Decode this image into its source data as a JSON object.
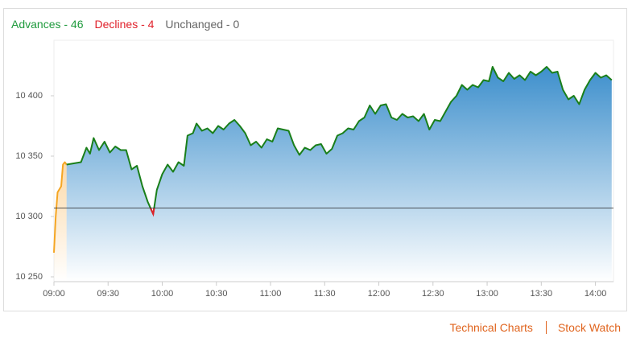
{
  "header": {
    "items": [
      {
        "text": "Advances - 46",
        "color": "#1e9a3c"
      },
      {
        "text": "Declines - 4",
        "color": "#e0202a"
      },
      {
        "text": "Unchanged - 0",
        "color": "#666666"
      }
    ]
  },
  "chart_data": {
    "type": "line",
    "xlim": [
      "09:00",
      "14:10"
    ],
    "xticks": [
      "09:00",
      "09:30",
      "10:00",
      "10:30",
      "11:00",
      "11:30",
      "12:00",
      "12:30",
      "13:00",
      "13:30",
      "14:00"
    ],
    "ylim": [
      10246,
      10446
    ],
    "yticks": [
      {
        "value": 10250,
        "label": "10 250"
      },
      {
        "value": 10300,
        "label": "10 300"
      },
      {
        "value": 10350,
        "label": "10 350"
      },
      {
        "value": 10400,
        "label": "10 400"
      }
    ],
    "reference": 10307,
    "below_color": "#e0202a",
    "series": [
      {
        "color": "#f5a623",
        "fill": "#fbd9a8",
        "x": [
          "09:00",
          "09:01",
          "09:02",
          "09:04",
          "09:05",
          "09:06",
          "09:07"
        ],
        "values": [
          10270,
          10300,
          10320,
          10325,
          10343,
          10345,
          10343
        ]
      },
      {
        "color": "#1a7f1a",
        "fill": "#3d8fcc",
        "x": [
          "09:07",
          "09:15",
          "09:18",
          "09:20",
          "09:22",
          "09:25",
          "09:28",
          "09:31",
          "09:34",
          "09:37",
          "09:40",
          "09:43",
          "09:46",
          "09:49",
          "09:52",
          "09:55",
          "09:57",
          "10:00",
          "10:03",
          "10:06",
          "10:09",
          "10:12",
          "10:14",
          "10:17",
          "10:19",
          "10:22",
          "10:25",
          "10:28",
          "10:31",
          "10:34",
          "10:37",
          "10:40",
          "10:43",
          "10:46",
          "10:49",
          "10:52",
          "10:55",
          "10:58",
          "11:01",
          "11:04",
          "11:07",
          "11:10",
          "11:13",
          "11:16",
          "11:19",
          "11:22",
          "11:25",
          "11:28",
          "11:31",
          "11:34",
          "11:37",
          "11:40",
          "11:43",
          "11:46",
          "11:49",
          "11:52",
          "11:55",
          "11:58",
          "12:01",
          "12:04",
          "12:07",
          "12:10",
          "12:13",
          "12:16",
          "12:19",
          "12:22",
          "12:25",
          "12:28",
          "12:31",
          "12:34",
          "12:37",
          "12:40",
          "12:43",
          "12:46",
          "12:49",
          "12:52",
          "12:55",
          "12:58",
          "13:01",
          "13:03",
          "13:06",
          "13:09",
          "13:12",
          "13:15",
          "13:18",
          "13:21",
          "13:24",
          "13:27",
          "13:30",
          "13:33",
          "13:36",
          "13:39",
          "13:42",
          "13:45",
          "13:48",
          "13:51",
          "13:54",
          "13:57",
          "14:00",
          "14:03",
          "14:06",
          "14:09"
        ],
        "values": [
          10343,
          10345,
          10357,
          10352,
          10365,
          10355,
          10362,
          10353,
          10358,
          10355,
          10355,
          10339,
          10342,
          10325,
          10312,
          10302,
          10322,
          10335,
          10343,
          10337,
          10345,
          10342,
          10367,
          10369,
          10377,
          10371,
          10373,
          10369,
          10375,
          10372,
          10377,
          10380,
          10375,
          10369,
          10359,
          10362,
          10357,
          10364,
          10362,
          10373,
          10372,
          10371,
          10359,
          10351,
          10357,
          10355,
          10359,
          10360,
          10352,
          10356,
          10367,
          10369,
          10373,
          10372,
          10379,
          10382,
          10392,
          10385,
          10392,
          10393,
          10382,
          10380,
          10385,
          10382,
          10383,
          10379,
          10385,
          10372,
          10380,
          10379,
          10387,
          10395,
          10400,
          10409,
          10405,
          10409,
          10407,
          10413,
          10412,
          10424,
          10415,
          10412,
          10419,
          10414,
          10417,
          10413,
          10420,
          10417,
          10420,
          10424,
          10419,
          10420,
          10405,
          10397,
          10400,
          10393,
          10405,
          10413,
          10419,
          10415,
          10417,
          10413
        ]
      }
    ]
  },
  "footer": {
    "links": [
      "Technical Charts",
      "Stock Watch"
    ]
  }
}
